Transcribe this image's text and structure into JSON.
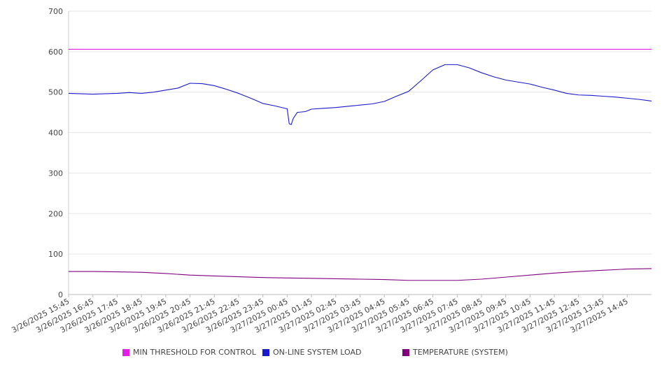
{
  "chart_data": {
    "type": "line",
    "title": "",
    "xlabel": "",
    "ylabel": "",
    "ylim": [
      0,
      700
    ],
    "yticks": [
      0,
      100,
      200,
      300,
      400,
      500,
      600,
      700
    ],
    "grid": true,
    "legend_position": "bottom",
    "x_range": [
      "3/26/2025 15:45",
      "3/27/2025 15:45"
    ],
    "xtick_labels": [
      "3/26/2025 15:45",
      "3/26/2025 16:45",
      "3/26/2025 17:45",
      "3/26/2025 18:45",
      "3/26/2025 19:45",
      "3/26/2025 20:45",
      "3/26/2025 21:45",
      "3/26/2025 22:45",
      "3/26/2025 23:45",
      "3/27/2025 00:45",
      "3/27/2025 01:45",
      "3/27/2025 02:45",
      "3/27/2025 03:45",
      "3/27/2025 04:45",
      "3/27/2025 05:45",
      "3/27/2025 06:45",
      "3/27/2025 07:45",
      "3/27/2025 08:45",
      "3/27/2025 09:45",
      "3/27/2025 10:45",
      "3/27/2025 11:45",
      "3/27/2025 12:45",
      "3/27/2025 13:45",
      "3/27/2025 14:45"
    ],
    "series": [
      {
        "name": "MIN THRESHOLD FOR CONTROL",
        "color": "#e020e0",
        "x": [
          "3/26/2025 15:45",
          "3/27/2025 15:45"
        ],
        "values": [
          606,
          606
        ]
      },
      {
        "name": "ON-LINE SYSTEM LOAD",
        "color": "#1a1acc",
        "x": [
          "3/26/2025 15:45",
          "3/26/2025 16:45",
          "3/26/2025 17:45",
          "3/26/2025 18:15",
          "3/26/2025 18:45",
          "3/26/2025 19:15",
          "3/26/2025 19:45",
          "3/26/2025 20:15",
          "3/26/2025 20:45",
          "3/26/2025 21:15",
          "3/26/2025 21:45",
          "3/26/2025 22:15",
          "3/26/2025 22:45",
          "3/26/2025 23:15",
          "3/26/2025 23:45",
          "3/27/2025 00:15",
          "3/27/2025 00:40",
          "3/27/2025 00:45",
          "3/27/2025 00:50",
          "3/27/2025 00:55",
          "3/27/2025 01:00",
          "3/27/2025 01:10",
          "3/27/2025 01:30",
          "3/27/2025 01:45",
          "3/27/2025 02:15",
          "3/27/2025 02:45",
          "3/27/2025 03:15",
          "3/27/2025 03:45",
          "3/27/2025 04:15",
          "3/27/2025 04:45",
          "3/27/2025 05:15",
          "3/27/2025 05:45",
          "3/27/2025 06:15",
          "3/27/2025 06:45",
          "3/27/2025 07:15",
          "3/27/2025 07:45",
          "3/27/2025 08:15",
          "3/27/2025 08:45",
          "3/27/2025 09:15",
          "3/27/2025 09:45",
          "3/27/2025 10:15",
          "3/27/2025 10:45",
          "3/27/2025 11:15",
          "3/27/2025 11:45",
          "3/27/2025 12:15",
          "3/27/2025 12:45",
          "3/27/2025 13:15",
          "3/27/2025 13:45",
          "3/27/2025 14:15",
          "3/27/2025 14:45",
          "3/27/2025 15:15",
          "3/27/2025 15:45"
        ],
        "values": [
          497,
          495,
          497,
          499,
          497,
          500,
          505,
          510,
          522,
          521,
          516,
          507,
          497,
          485,
          472,
          466,
          460,
          459,
          422,
          420,
          435,
          450,
          452,
          458,
          460,
          462,
          465,
          468,
          471,
          477,
          490,
          502,
          528,
          555,
          568,
          568,
          560,
          548,
          538,
          530,
          525,
          520,
          512,
          505,
          497,
          493,
          492,
          490,
          488,
          485,
          482,
          478
        ]
      },
      {
        "name": "TEMPERATURE (SYSTEM)",
        "color": "#800080",
        "x": [
          "3/26/2025 15:45",
          "3/26/2025 16:45",
          "3/26/2025 17:45",
          "3/26/2025 18:45",
          "3/26/2025 19:45",
          "3/26/2025 20:45",
          "3/26/2025 21:45",
          "3/26/2025 22:45",
          "3/26/2025 23:45",
          "3/27/2025 00:45",
          "3/27/2025 01:45",
          "3/27/2025 02:45",
          "3/27/2025 03:45",
          "3/27/2025 04:45",
          "3/27/2025 05:45",
          "3/27/2025 06:45",
          "3/27/2025 07:45",
          "3/27/2025 08:45",
          "3/27/2025 09:45",
          "3/27/2025 10:45",
          "3/27/2025 11:45",
          "3/27/2025 12:45",
          "3/27/2025 13:45",
          "3/27/2025 14:45",
          "3/27/2025 15:45"
        ],
        "values": [
          57,
          57,
          56,
          55,
          52,
          48,
          46,
          44,
          42,
          41,
          40,
          39,
          38,
          37,
          35,
          35,
          35,
          38,
          43,
          48,
          53,
          57,
          60,
          63,
          64
        ]
      }
    ]
  }
}
